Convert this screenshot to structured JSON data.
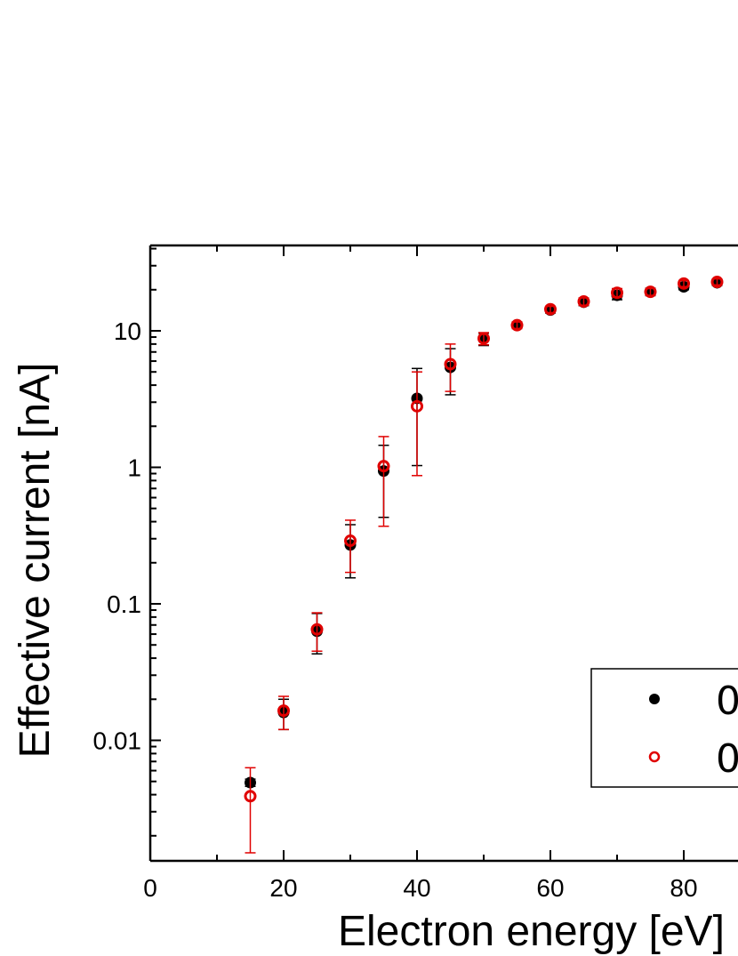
{
  "chart_data": {
    "type": "scatter",
    "title": "",
    "xlabel": "Electron energy [eV]",
    "ylabel": "Effective current [nA]",
    "xlim": [
      0,
      100
    ],
    "ylim": [
      0.002,
      40
    ],
    "yscale": "log",
    "grid": false,
    "legend_position": "bottom-right",
    "x_ticks": [
      0,
      20,
      40,
      60,
      80
    ],
    "y_ticks": [
      0.01,
      0.1,
      1,
      10
    ],
    "y_tick_labels": [
      "0.01",
      "0.1",
      "1",
      "10"
    ],
    "series": [
      {
        "name": "0",
        "marker": "filled-circle",
        "color": "#000000",
        "x": [
          15,
          20,
          25,
          30,
          35,
          40,
          45,
          50,
          55,
          60,
          65,
          70,
          75,
          80,
          85
        ],
        "y": [
          0.0049,
          0.016,
          0.063,
          0.27,
          0.94,
          3.2,
          5.4,
          8.8,
          11.0,
          14.2,
          16.2,
          18.2,
          19.3,
          21.0,
          22.5
        ],
        "err_low": [
          0.0046,
          0.012,
          0.043,
          0.155,
          0.43,
          1.03,
          3.4,
          7.8,
          10.4,
          13.5,
          15.3,
          16.9,
          18.1,
          20.0,
          21.5
        ],
        "err_high": [
          0.0052,
          0.02,
          0.085,
          0.38,
          1.45,
          5.3,
          7.4,
          9.6,
          11.6,
          15.0,
          17.1,
          19.6,
          20.5,
          22.0,
          23.5
        ]
      },
      {
        "name": "0",
        "marker": "open-circle",
        "color": "#e00000",
        "x": [
          15,
          20,
          25,
          30,
          35,
          40,
          45,
          50,
          55,
          60,
          65,
          70,
          75,
          80,
          85
        ],
        "y": [
          0.0039,
          0.0165,
          0.065,
          0.29,
          1.02,
          2.8,
          5.7,
          8.8,
          11.0,
          14.4,
          16.4,
          19.0,
          19.3,
          22.2,
          22.8
        ],
        "err_low": [
          0.0015,
          0.012,
          0.045,
          0.17,
          0.37,
          0.87,
          3.6,
          7.9,
          10.4,
          13.6,
          15.4,
          17.6,
          18.2,
          21.1,
          21.7
        ],
        "err_high": [
          0.0063,
          0.021,
          0.086,
          0.41,
          1.68,
          5.0,
          8.0,
          9.7,
          11.6,
          15.1,
          17.4,
          20.4,
          20.4,
          23.3,
          24.0
        ]
      }
    ]
  }
}
